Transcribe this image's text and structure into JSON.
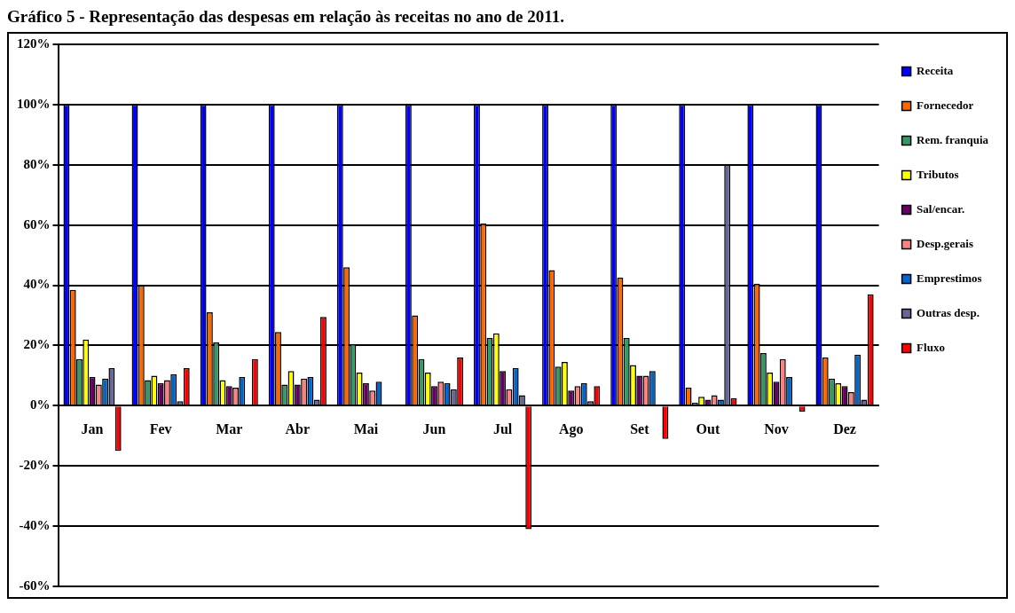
{
  "chart_data": {
    "type": "bar",
    "title": "Gráfico 5 - Representação das despesas em relação às receitas no ano de 2011.",
    "categories": [
      "Jan",
      "Fev",
      "Mar",
      "Abr",
      "Mai",
      "Jun",
      "Jul",
      "Ago",
      "Set",
      "Out",
      "Nov",
      "Dez"
    ],
    "series": [
      {
        "name": "Receita",
        "color": "#0000ff",
        "values": [
          100,
          100,
          100,
          100,
          100,
          100,
          100,
          100,
          100,
          100,
          100,
          100
        ]
      },
      {
        "name": "Fornecedor",
        "color": "#ff6600",
        "values": [
          38.5,
          40,
          31,
          24.5,
          46,
          30,
          60.5,
          45,
          42.5,
          6,
          40.5,
          16
        ]
      },
      {
        "name": "Rem. franquia",
        "color": "#339966",
        "values": [
          15.5,
          8.5,
          21,
          7,
          20.5,
          15.5,
          22.5,
          13,
          22.5,
          1,
          17.5,
          9
        ]
      },
      {
        "name": "Tributos",
        "color": "#ffff00",
        "values": [
          22,
          10,
          8.5,
          11.5,
          11,
          11,
          24,
          14.5,
          13.5,
          3,
          11,
          7.5
        ]
      },
      {
        "name": "Sal/encar.",
        "color": "#660066",
        "values": [
          9.5,
          7.5,
          6.5,
          7,
          7.5,
          6.5,
          11.5,
          5,
          10,
          2,
          8,
          6.5
        ]
      },
      {
        "name": "Desp.gerais",
        "color": "#ff8080",
        "values": [
          7,
          8.5,
          6,
          9,
          5,
          8,
          5.5,
          6.5,
          10,
          3.5,
          15.5,
          4.5
        ]
      },
      {
        "name": "Emprestimos",
        "color": "#0066cc",
        "values": [
          9,
          10.5,
          9.5,
          9.5,
          8,
          7.5,
          12.5,
          7.5,
          11.5,
          2,
          9.5,
          17
        ]
      },
      {
        "name": "Outras desp.",
        "color": "#666699",
        "values": [
          12.5,
          1.5,
          null,
          2,
          null,
          5.5,
          3.5,
          1.5,
          null,
          80,
          0,
          2
        ]
      },
      {
        "name": "Fluxo",
        "color": "#ff0000",
        "values": [
          -15,
          12.5,
          15.5,
          29.5,
          null,
          16,
          -41,
          6.5,
          -11,
          2.5,
          -2,
          37
        ]
      }
    ],
    "ylim": [
      -60,
      120
    ],
    "yticks": [
      {
        "value": -60,
        "label": "-60%"
      },
      {
        "value": -40,
        "label": "-40%"
      },
      {
        "value": -20,
        "label": "-20%"
      },
      {
        "value": 0,
        "label": "0%"
      },
      {
        "value": 20,
        "label": "20%"
      },
      {
        "value": 40,
        "label": "40%"
      },
      {
        "value": 60,
        "label": "60%"
      },
      {
        "value": 80,
        "label": "80%"
      },
      {
        "value": 100,
        "label": "100%"
      },
      {
        "value": 120,
        "label": "120%"
      }
    ],
    "grid": "y",
    "legend": "right"
  }
}
